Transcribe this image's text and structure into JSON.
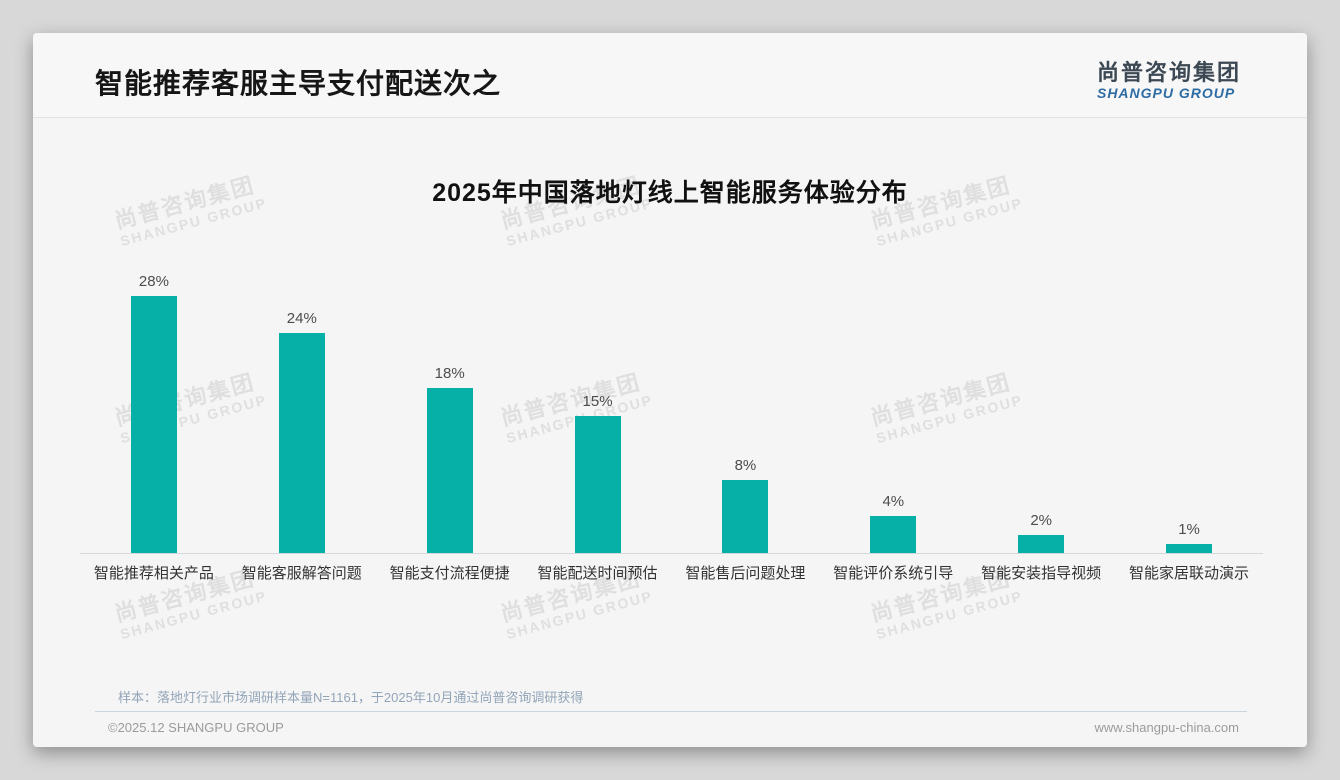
{
  "page": {
    "title": "智能推荐客服主导支付配送次之"
  },
  "logo": {
    "cn": "尚普咨询集团",
    "en": "SHANGPU GROUP"
  },
  "watermark": {
    "cn": "尚普咨询集团",
    "en": "SHANGPU GROUP"
  },
  "chart_data": {
    "type": "bar",
    "title": "2025年中国落地灯线上智能服务体验分布",
    "categories": [
      "智能推荐相关产品",
      "智能客服解答问题",
      "智能支付流程便捷",
      "智能配送时间预估",
      "智能售后问题处理",
      "智能评价系统引导",
      "智能安装指导视频",
      "智能家居联动演示"
    ],
    "values": [
      28,
      24,
      18,
      15,
      8,
      4,
      2,
      1
    ],
    "unit": "%",
    "data_labels": true,
    "bar_color": "#06b0a6",
    "xlabel": "",
    "ylabel": "",
    "ylim": [
      0,
      31
    ],
    "grid": false,
    "legend": "none"
  },
  "footnote": "样本：落地灯行业市场调研样本量N=1161，于2025年10月通过尚普咨询调研获得",
  "footer": {
    "left": "©2025.12 SHANGPU GROUP",
    "right": "www.shangpu-china.com"
  }
}
